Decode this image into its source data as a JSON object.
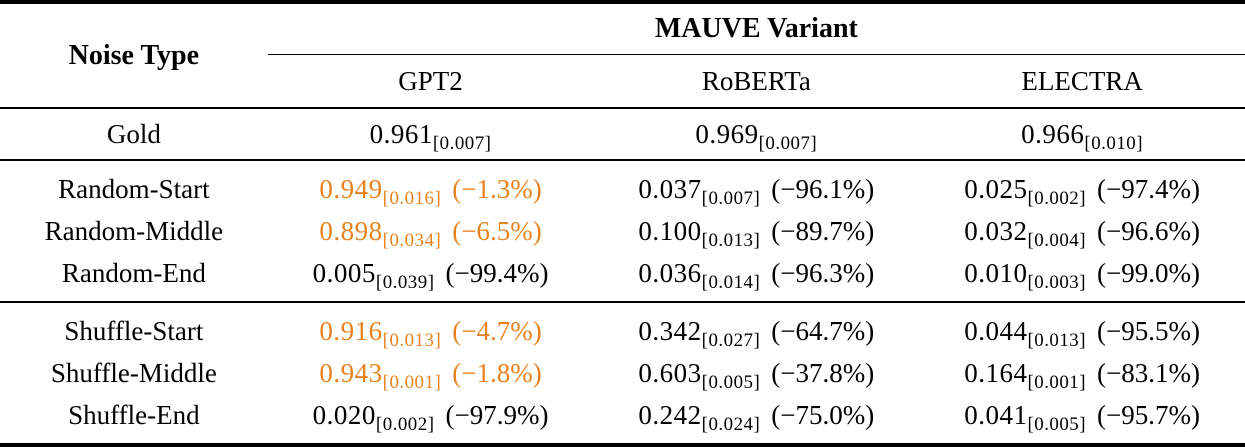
{
  "meta": {
    "highlight_color": "#E8821E",
    "text_color": "#000000",
    "background_color": "#FFFFFF"
  },
  "table": {
    "corner_header": "Noise Type",
    "group_header": "MAUVE Variant",
    "columns": [
      "GPT2",
      "RoBERTa",
      "ELECTRA"
    ],
    "sections": [
      {
        "name": "gold",
        "rows": [
          {
            "label": "Gold",
            "cells": [
              {
                "value": "0.961",
                "ci": "[0.007]",
                "pct": "",
                "highlight": false
              },
              {
                "value": "0.969",
                "ci": "[0.007]",
                "pct": "",
                "highlight": false
              },
              {
                "value": "0.966",
                "ci": "[0.010]",
                "pct": "",
                "highlight": false
              }
            ]
          }
        ]
      },
      {
        "name": "random",
        "rows": [
          {
            "label": "Random-Start",
            "cells": [
              {
                "value": "0.949",
                "ci": "[0.016]",
                "pct": "(−1.3%)",
                "highlight": true
              },
              {
                "value": "0.037",
                "ci": "[0.007]",
                "pct": "(−96.1%)",
                "highlight": false
              },
              {
                "value": "0.025",
                "ci": "[0.002]",
                "pct": "(−97.4%)",
                "highlight": false
              }
            ]
          },
          {
            "label": "Random-Middle",
            "cells": [
              {
                "value": "0.898",
                "ci": "[0.034]",
                "pct": "(−6.5%)",
                "highlight": true
              },
              {
                "value": "0.100",
                "ci": "[0.013]",
                "pct": "(−89.7%)",
                "highlight": false
              },
              {
                "value": "0.032",
                "ci": "[0.004]",
                "pct": "(−96.6%)",
                "highlight": false
              }
            ]
          },
          {
            "label": "Random-End",
            "cells": [
              {
                "value": "0.005",
                "ci": "[0.039]",
                "pct": "(−99.4%)",
                "highlight": false
              },
              {
                "value": "0.036",
                "ci": "[0.014]",
                "pct": "(−96.3%)",
                "highlight": false
              },
              {
                "value": "0.010",
                "ci": "[0.003]",
                "pct": "(−99.0%)",
                "highlight": false
              }
            ]
          }
        ]
      },
      {
        "name": "shuffle",
        "rows": [
          {
            "label": "Shuffle-Start",
            "cells": [
              {
                "value": "0.916",
                "ci": "[0.013]",
                "pct": "(−4.7%)",
                "highlight": true
              },
              {
                "value": "0.342",
                "ci": "[0.027]",
                "pct": "(−64.7%)",
                "highlight": false
              },
              {
                "value": "0.044",
                "ci": "[0.013]",
                "pct": "(−95.5%)",
                "highlight": false
              }
            ]
          },
          {
            "label": "Shuffle-Middle",
            "cells": [
              {
                "value": "0.943",
                "ci": "[0.001]",
                "pct": "(−1.8%)",
                "highlight": true
              },
              {
                "value": "0.603",
                "ci": "[0.005]",
                "pct": "(−37.8%)",
                "highlight": false
              },
              {
                "value": "0.164",
                "ci": "[0.001]",
                "pct": "(−83.1%)",
                "highlight": false
              }
            ]
          },
          {
            "label": "Shuffle-End",
            "cells": [
              {
                "value": "0.020",
                "ci": "[0.002]",
                "pct": "(−97.9%)",
                "highlight": false
              },
              {
                "value": "0.242",
                "ci": "[0.024]",
                "pct": "(−75.0%)",
                "highlight": false
              },
              {
                "value": "0.041",
                "ci": "[0.005]",
                "pct": "(−95.7%)",
                "highlight": false
              }
            ]
          }
        ]
      }
    ]
  }
}
